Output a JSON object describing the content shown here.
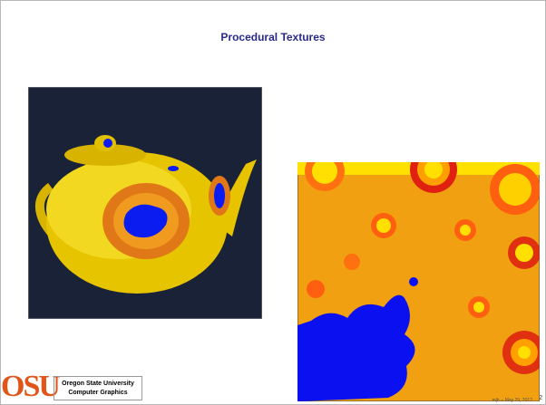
{
  "header": {
    "title": "Procedural Textures"
  },
  "footer": {
    "logo": "OSU",
    "institution": "Oregon State University",
    "department": "Computer Graphics",
    "credit": "mjb -- May 29, 2012",
    "page": "2"
  }
}
